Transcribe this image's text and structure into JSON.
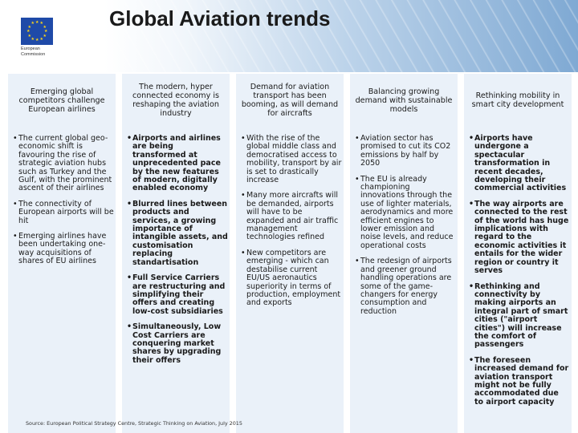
{
  "header": {
    "title": "Global Aviation trends",
    "logo_text": [
      "European",
      "Commission"
    ]
  },
  "columns": [
    {
      "heading": "Emerging global competitors challenge European airlines",
      "bullets": [
        "The current global geo-economic shift is favouring the rise of strategic aviation hubs such as Turkey and the Gulf, with the prominent ascent of their airlines",
        "The connectivity of European airports will be hit",
        "Emerging airlines have been undertaking one-way acquisitions of shares of EU airlines"
      ]
    },
    {
      "heading": "The modern, hyper connected economy is reshaping the aviation industry",
      "bullets": [
        "Airports and airlines are being transformed at unprecedented pace by the new features of modern, digitally enabled economy",
        "Blurred lines between products and services, a growing importance of intangible assets, and customisation replacing standartisation",
        "Full Service Carriers are restructuring and simplifying their offers and creating low-cost subsidiaries",
        "Simultaneously, Low Cost Carriers are conquering market shares by upgrading their offers"
      ]
    },
    {
      "heading": "Demand for aviation transport has been booming, as will demand for aircrafts",
      "bullets": [
        "With the rise of the global middle class and democratised access to mobility, transport by air is set to drastically increase",
        "Many more aircrafts will be demanded, airports will have to be expanded and air traffic management technologies refined",
        "New competitors are emerging - which can destabilise current EU/US aeronautics superiority in terms of production, employment and exports"
      ]
    },
    {
      "heading": "Balancing growing demand with sustainable models",
      "bullets": [
        "Aviation sector has promised to cut its CO2 emissions by half by 2050",
        "The EU is already championing innovations through the use of lighter materials, aerodynamics and more efficient engines to lower emission and noise levels, and reduce operational costs",
        "The redesign of airports and greener ground handling operations are some of the game-changers for energy consumption and reduction"
      ]
    },
    {
      "heading": "Rethinking mobility in smart city development",
      "bullets": [
        "Airports have undergone a spectacular transformation in recent decades, developing their commercial activities",
        "The way airports are connected to the rest of the world has huge implications with regard to the economic activities it entails for the wider region or country it serves",
        "Rethinking and connectivity by making airports an integral part of smart cities (\"airport cities\") will increase the comfort of passengers",
        "The foreseen increased demand for aviation transport might not be fully accommodated due to airport capacity"
      ]
    }
  ],
  "source": "Source: European Political Strategy Centre, Strategic Thinking on Aviation, July 2015"
}
